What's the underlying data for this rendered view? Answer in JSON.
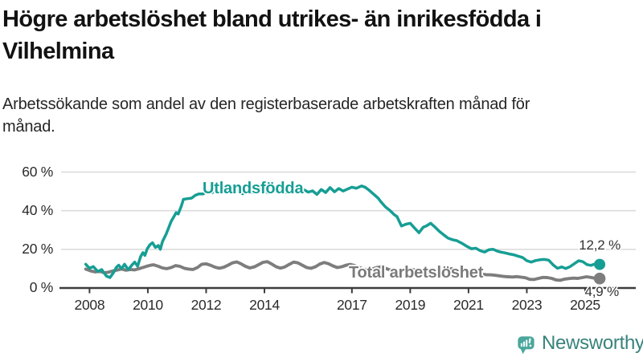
{
  "header": {
    "title": "Högre arbetslöshet bland utrikes- än inrikesfödda i Vilhelmina",
    "subtitle": "Arbetssökande som andel av den registerbaserade arbetskraften månad för månad."
  },
  "colors": {
    "foreign_line": "#169e94",
    "total_line": "#7d7d7d",
    "grid": "#d9d9d9",
    "axis": "#3c3c3c",
    "title_text": "#121212",
    "logo_icon": "#49a79b",
    "logo_text": "#38837c"
  },
  "logo": {
    "text": "Newsworthy",
    "icon": "newsworthy-speech-bubble-barchart-icon"
  },
  "chart_data": {
    "type": "line",
    "title": "Högre arbetslöshet bland utrikes- än inrikesfödda i Vilhelmina",
    "subtitle": "Arbetssökande som andel av den registerbaserade arbetskraften månad för månad.",
    "xlabel": "",
    "ylabel": "",
    "grid": "horizontal",
    "legend_position": "inline-labels",
    "xlim": [
      2007.8,
      2025.95
    ],
    "ylim": [
      0,
      62
    ],
    "y_ticks": [
      {
        "value": 0,
        "label": "0 %"
      },
      {
        "value": 20,
        "label": "20 %"
      },
      {
        "value": 40,
        "label": "40 %"
      },
      {
        "value": 60,
        "label": "60 %"
      }
    ],
    "x_ticks": [
      {
        "year": 2008,
        "label": "2008"
      },
      {
        "year": 2010,
        "label": "2010"
      },
      {
        "year": 2012,
        "label": "2012"
      },
      {
        "year": 2014,
        "label": "2014"
      },
      {
        "year": 2017,
        "label": "2017"
      },
      {
        "year": 2019,
        "label": "2019"
      },
      {
        "year": 2021,
        "label": "2021"
      },
      {
        "year": 2023,
        "label": "2023"
      },
      {
        "year": 2025,
        "label": "2025"
      }
    ],
    "series": [
      {
        "name": "Utlandsfödda",
        "color": "#169e94",
        "end_label": "12,2 %",
        "end_value": 12.2,
        "line_width": 3.5,
        "points": [
          [
            2007.87,
            12.3
          ],
          [
            2008.0,
            10.2
          ],
          [
            2008.13,
            11.1
          ],
          [
            2008.28,
            8.6
          ],
          [
            2008.42,
            9.5
          ],
          [
            2008.58,
            6.2
          ],
          [
            2008.7,
            5.4
          ],
          [
            2008.82,
            7.9
          ],
          [
            2008.92,
            10.7
          ],
          [
            2009.0,
            11.8
          ],
          [
            2009.1,
            10.0
          ],
          [
            2009.2,
            12.3
          ],
          [
            2009.33,
            9.5
          ],
          [
            2009.46,
            12.0
          ],
          [
            2009.55,
            13.4
          ],
          [
            2009.65,
            11.3
          ],
          [
            2009.75,
            16.2
          ],
          [
            2009.83,
            18.3
          ],
          [
            2009.9,
            16.9
          ],
          [
            2009.98,
            20.3
          ],
          [
            2010.07,
            22.4
          ],
          [
            2010.16,
            23.4
          ],
          [
            2010.26,
            21.0
          ],
          [
            2010.36,
            22.0
          ],
          [
            2010.43,
            20.0
          ],
          [
            2010.5,
            24.0
          ],
          [
            2010.63,
            28.0
          ],
          [
            2010.8,
            34.5
          ],
          [
            2010.92,
            37.6
          ],
          [
            2010.97,
            39.0
          ],
          [
            2011.04,
            38.3
          ],
          [
            2011.15,
            42.5
          ],
          [
            2011.22,
            45.9
          ],
          [
            2011.35,
            46.2
          ],
          [
            2011.5,
            46.5
          ],
          [
            2011.63,
            48.0
          ],
          [
            2011.75,
            48.7
          ],
          [
            2011.9,
            48.7
          ],
          [
            2012.05,
            50.2
          ],
          [
            2012.2,
            49.3
          ],
          [
            2012.35,
            50.8
          ],
          [
            2012.5,
            49.6
          ],
          [
            2012.65,
            50.9
          ],
          [
            2012.8,
            49.8
          ],
          [
            2012.95,
            51.0
          ],
          [
            2013.1,
            50.0
          ],
          [
            2013.25,
            48.8
          ],
          [
            2013.4,
            50.3
          ],
          [
            2013.55,
            49.4
          ],
          [
            2013.7,
            50.9
          ],
          [
            2013.85,
            51.3
          ],
          [
            2014.0,
            50.2
          ],
          [
            2014.15,
            49.0
          ],
          [
            2014.3,
            50.6
          ],
          [
            2014.45,
            49.6
          ],
          [
            2014.6,
            50.8
          ],
          [
            2014.75,
            49.4
          ],
          [
            2014.9,
            50.4
          ],
          [
            2015.05,
            51.2
          ],
          [
            2015.2,
            49.8
          ],
          [
            2015.35,
            50.9
          ],
          [
            2015.5,
            49.6
          ],
          [
            2015.65,
            50.3
          ],
          [
            2015.8,
            48.4
          ],
          [
            2015.95,
            51.0
          ],
          [
            2016.1,
            49.4
          ],
          [
            2016.25,
            52.0
          ],
          [
            2016.4,
            49.8
          ],
          [
            2016.55,
            51.5
          ],
          [
            2016.7,
            50.2
          ],
          [
            2016.85,
            51.2
          ],
          [
            2017.0,
            52.2
          ],
          [
            2017.15,
            51.6
          ],
          [
            2017.33,
            52.8
          ],
          [
            2017.45,
            52.2
          ],
          [
            2017.6,
            50.5
          ],
          [
            2017.75,
            48.5
          ],
          [
            2017.9,
            46.5
          ],
          [
            2018.0,
            44.5
          ],
          [
            2018.15,
            42.0
          ],
          [
            2018.3,
            40.2
          ],
          [
            2018.45,
            38.0
          ],
          [
            2018.55,
            36.9
          ],
          [
            2018.7,
            32.1
          ],
          [
            2018.85,
            33.0
          ],
          [
            2019.0,
            33.5
          ],
          [
            2019.15,
            31.0
          ],
          [
            2019.3,
            28.6
          ],
          [
            2019.45,
            31.5
          ],
          [
            2019.55,
            32.1
          ],
          [
            2019.7,
            33.5
          ],
          [
            2019.85,
            31.5
          ],
          [
            2020.0,
            29.3
          ],
          [
            2020.15,
            27.5
          ],
          [
            2020.3,
            25.8
          ],
          [
            2020.45,
            25.0
          ],
          [
            2020.6,
            24.5
          ],
          [
            2020.78,
            23.1
          ],
          [
            2020.95,
            21.5
          ],
          [
            2021.1,
            20.3
          ],
          [
            2021.25,
            20.6
          ],
          [
            2021.4,
            19.3
          ],
          [
            2021.55,
            18.6
          ],
          [
            2021.7,
            19.8
          ],
          [
            2021.85,
            20.0
          ],
          [
            2021.97,
            19.2
          ],
          [
            2022.1,
            18.6
          ],
          [
            2022.25,
            18.2
          ],
          [
            2022.4,
            17.6
          ],
          [
            2022.55,
            17.2
          ],
          [
            2022.7,
            16.5
          ],
          [
            2022.85,
            15.8
          ],
          [
            2023.0,
            14.1
          ],
          [
            2023.15,
            13.4
          ],
          [
            2023.3,
            14.2
          ],
          [
            2023.45,
            14.6
          ],
          [
            2023.6,
            14.8
          ],
          [
            2023.75,
            14.4
          ],
          [
            2023.9,
            12.0
          ],
          [
            2024.05,
            10.2
          ],
          [
            2024.2,
            10.9
          ],
          [
            2024.33,
            10.1
          ],
          [
            2024.48,
            11.0
          ],
          [
            2024.62,
            12.5
          ],
          [
            2024.78,
            14.1
          ],
          [
            2024.92,
            13.6
          ],
          [
            2025.07,
            12.1
          ],
          [
            2025.2,
            11.7
          ],
          [
            2025.35,
            12.5
          ],
          [
            2025.5,
            12.2
          ]
        ]
      },
      {
        "name": "Total arbetslöshet",
        "color": "#7d7d7d",
        "end_label": "4,9 %",
        "end_value": 4.9,
        "line_width": 3.9,
        "points": [
          [
            2007.87,
            9.8
          ],
          [
            2008.05,
            8.8
          ],
          [
            2008.2,
            8.3
          ],
          [
            2008.35,
            8.7
          ],
          [
            2008.5,
            7.9
          ],
          [
            2008.65,
            8.2
          ],
          [
            2008.8,
            8.8
          ],
          [
            2008.95,
            9.3
          ],
          [
            2009.1,
            9.8
          ],
          [
            2009.25,
            9.2
          ],
          [
            2009.4,
            9.6
          ],
          [
            2009.55,
            9.4
          ],
          [
            2009.7,
            10.0
          ],
          [
            2009.85,
            10.7
          ],
          [
            2010.0,
            11.4
          ],
          [
            2010.1,
            11.8
          ],
          [
            2010.2,
            12.0
          ],
          [
            2010.35,
            11.3
          ],
          [
            2010.5,
            10.4
          ],
          [
            2010.65,
            10.0
          ],
          [
            2010.8,
            10.6
          ],
          [
            2010.95,
            11.6
          ],
          [
            2011.1,
            11.2
          ],
          [
            2011.25,
            10.2
          ],
          [
            2011.4,
            9.8
          ],
          [
            2011.55,
            9.6
          ],
          [
            2011.7,
            10.6
          ],
          [
            2011.85,
            12.3
          ],
          [
            2012.0,
            12.5
          ],
          [
            2012.15,
            11.8
          ],
          [
            2012.3,
            10.8
          ],
          [
            2012.45,
            10.2
          ],
          [
            2012.6,
            10.7
          ],
          [
            2012.75,
            11.8
          ],
          [
            2012.9,
            13.0
          ],
          [
            2013.05,
            13.5
          ],
          [
            2013.2,
            12.5
          ],
          [
            2013.35,
            11.2
          ],
          [
            2013.5,
            10.4
          ],
          [
            2013.65,
            10.9
          ],
          [
            2013.8,
            12.1
          ],
          [
            2013.95,
            13.3
          ],
          [
            2014.1,
            13.6
          ],
          [
            2014.25,
            12.4
          ],
          [
            2014.4,
            11.0
          ],
          [
            2014.55,
            10.3
          ],
          [
            2014.7,
            10.9
          ],
          [
            2014.85,
            12.2
          ],
          [
            2015.0,
            13.4
          ],
          [
            2015.15,
            13.0
          ],
          [
            2015.3,
            11.8
          ],
          [
            2015.45,
            10.6
          ],
          [
            2015.6,
            10.2
          ],
          [
            2015.75,
            11.0
          ],
          [
            2015.9,
            12.4
          ],
          [
            2016.05,
            13.2
          ],
          [
            2016.2,
            12.6
          ],
          [
            2016.35,
            11.4
          ],
          [
            2016.5,
            10.6
          ],
          [
            2016.65,
            11.0
          ],
          [
            2016.8,
            11.8
          ],
          [
            2016.95,
            12.2
          ],
          [
            2017.1,
            11.6
          ],
          [
            2017.25,
            10.6
          ],
          [
            2017.4,
            9.8
          ],
          [
            2017.55,
            9.4
          ],
          [
            2017.7,
            9.8
          ],
          [
            2017.85,
            10.6
          ],
          [
            2018.0,
            10.9
          ],
          [
            2018.15,
            10.2
          ],
          [
            2018.3,
            9.4
          ],
          [
            2018.45,
            8.8
          ],
          [
            2018.6,
            8.5
          ],
          [
            2018.75,
            8.9
          ],
          [
            2018.9,
            9.5
          ],
          [
            2019.05,
            9.7
          ],
          [
            2019.2,
            9.1
          ],
          [
            2019.35,
            8.4
          ],
          [
            2019.5,
            8.0
          ],
          [
            2019.65,
            8.2
          ],
          [
            2019.8,
            8.8
          ],
          [
            2019.95,
            9.2
          ],
          [
            2020.1,
            9.0
          ],
          [
            2020.25,
            9.6
          ],
          [
            2020.4,
            10.0
          ],
          [
            2020.55,
            9.6
          ],
          [
            2020.7,
            9.0
          ],
          [
            2020.85,
            8.6
          ],
          [
            2021.0,
            8.3
          ],
          [
            2021.15,
            7.9
          ],
          [
            2021.3,
            7.6
          ],
          [
            2021.45,
            7.2
          ],
          [
            2021.6,
            6.9
          ],
          [
            2021.75,
            6.8
          ],
          [
            2021.9,
            6.6
          ],
          [
            2022.05,
            6.3
          ],
          [
            2022.2,
            6.0
          ],
          [
            2022.35,
            5.8
          ],
          [
            2022.5,
            5.7
          ],
          [
            2022.65,
            5.9
          ],
          [
            2022.8,
            5.6
          ],
          [
            2022.95,
            5.3
          ],
          [
            2023.1,
            4.5
          ],
          [
            2023.25,
            4.4
          ],
          [
            2023.4,
            5.0
          ],
          [
            2023.55,
            5.5
          ],
          [
            2023.7,
            5.4
          ],
          [
            2023.85,
            5.0
          ],
          [
            2024.0,
            4.2
          ],
          [
            2024.15,
            4.0
          ],
          [
            2024.3,
            4.6
          ],
          [
            2024.45,
            4.9
          ],
          [
            2024.6,
            5.1
          ],
          [
            2024.75,
            5.0
          ],
          [
            2024.9,
            5.4
          ],
          [
            2025.05,
            5.8
          ],
          [
            2025.2,
            5.5
          ],
          [
            2025.35,
            5.0
          ],
          [
            2025.5,
            4.9
          ]
        ]
      }
    ]
  }
}
